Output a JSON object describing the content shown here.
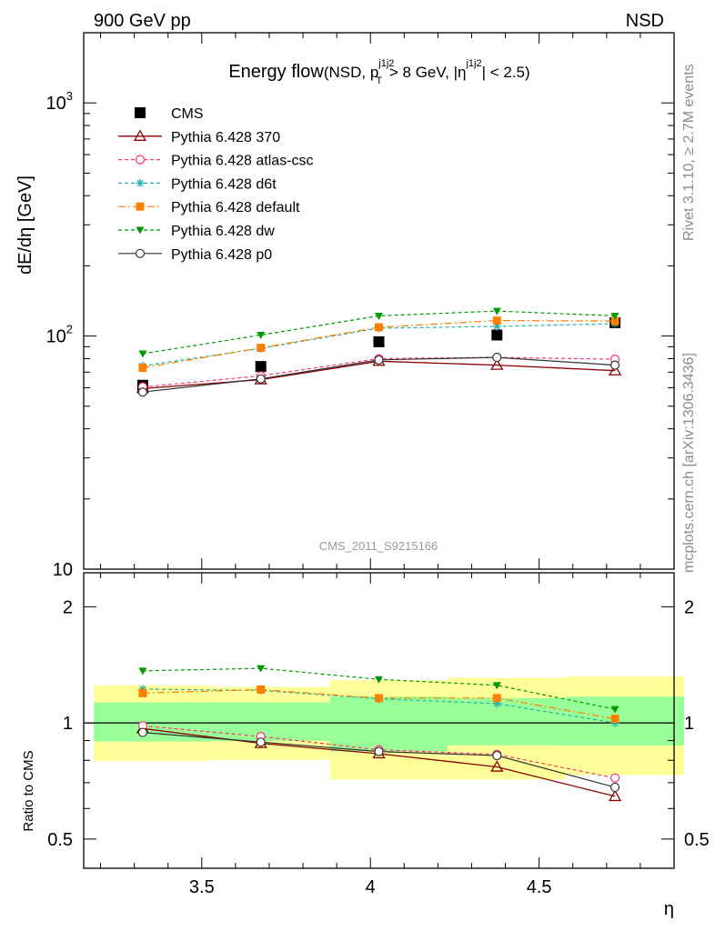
{
  "header": {
    "left": "900 GeV pp",
    "right": "NSD"
  },
  "side_text": {
    "rivet": "Rivet 3.1.10, ≥ 2.7M events",
    "mcplots": "mcplots.cern.ch [arXiv:1306.3436]"
  },
  "watermark": "CMS_2011_S9215166",
  "colors": {
    "cms": "#000000",
    "p370": "#8b0000",
    "atlas": "#ff3366",
    "d6t": "#20b2aa",
    "default": "#ff8000",
    "dw": "#009900",
    "p0": "#333333",
    "band_outer": "#ffff99",
    "band_inner": "#99ff99"
  },
  "chart_data": [
    {
      "type": "line",
      "title_main": "Energy flow",
      "title_detail": {
        "open": "(NSD, p",
        "sup1": "j1j2",
        "sub1": "T",
        "mid": " > 8 GeV, |η",
        "sup2": "j1j2",
        "close": "| < 2.5)"
      },
      "ylabel": "dE/dη [GeV]",
      "yscale": "log",
      "ylim": [
        10,
        2000
      ],
      "xlim": [
        3.15,
        4.9
      ],
      "y_tick_labels": [
        {
          "value": 10,
          "label": "10"
        },
        {
          "value": 100,
          "label": "10",
          "exp": "2"
        },
        {
          "value": 1000,
          "label": "10",
          "exp": "3"
        }
      ],
      "x": [
        3.325,
        3.675,
        4.025,
        4.375,
        4.725
      ],
      "series": [
        {
          "name": "CMS",
          "key": "cms",
          "values": [
            61.5,
            74.0,
            94.5,
            101.0,
            114.0
          ]
        },
        {
          "name": "Pythia 6.428 370",
          "key": "p370",
          "values": [
            59.5,
            65.0,
            78.0,
            75.0,
            71.0
          ]
        },
        {
          "name": "Pythia 6.428 atlas-csc",
          "key": "atlas",
          "values": [
            60.5,
            67.5,
            80.0,
            81.0,
            79.5
          ]
        },
        {
          "name": "Pythia 6.428 d6t",
          "key": "d6t",
          "values": [
            74.5,
            88.5,
            108.0,
            110.0,
            113.0
          ]
        },
        {
          "name": "Pythia 6.428 default",
          "key": "default",
          "values": [
            73.0,
            89.0,
            109.0,
            116.5,
            116.0
          ]
        },
        {
          "name": "Pythia 6.428 dw",
          "key": "dw",
          "values": [
            84.0,
            101.0,
            122.0,
            128.0,
            122.0
          ]
        },
        {
          "name": "Pythia 6.428 p0",
          "key": "p0",
          "values": [
            57.5,
            65.5,
            79.0,
            81.0,
            75.0
          ]
        }
      ]
    },
    {
      "type": "line",
      "xlabel": "η",
      "ylabel": "Ratio to CMS",
      "yscale": "log",
      "ylim": [
        0.42,
        2.45
      ],
      "xlim": [
        3.15,
        4.9
      ],
      "x_tick_labels": [
        {
          "value": 3.5,
          "label": "3.5"
        },
        {
          "value": 4.0,
          "label": "4"
        },
        {
          "value": 4.5,
          "label": "4.5"
        }
      ],
      "y_tick_labels": [
        {
          "value": 0.5,
          "label": "0.5"
        },
        {
          "value": 1,
          "label": "1"
        },
        {
          "value": 2,
          "label": "2"
        }
      ],
      "bands": [
        {
          "x": [
            3.15,
            3.5
          ],
          "outer": [
            0.797,
            1.25
          ],
          "inner": [
            0.895,
            1.13
          ]
        },
        {
          "x": [
            3.5,
            3.85
          ],
          "outer": [
            0.803,
            1.24
          ],
          "inner": [
            0.898,
            1.13
          ]
        },
        {
          "x": [
            3.85,
            4.2
          ],
          "outer": [
            0.714,
            1.29
          ],
          "inner": [
            0.844,
            1.17
          ]
        },
        {
          "x": [
            4.2,
            4.55
          ],
          "outer": [
            0.714,
            1.31
          ],
          "inner": [
            0.875,
            1.16
          ]
        },
        {
          "x": [
            4.55,
            4.9
          ],
          "outer": [
            0.733,
            1.32
          ],
          "inner": [
            0.873,
            1.17
          ]
        }
      ],
      "series": [
        {
          "name": "Pythia 6.428 370",
          "key": "p370",
          "values": [
            0.967,
            0.885,
            0.832,
            0.769,
            0.645
          ]
        },
        {
          "name": "Pythia 6.428 atlas-csc",
          "key": "atlas",
          "values": [
            0.983,
            0.922,
            0.852,
            0.829,
            0.72
          ]
        },
        {
          "name": "Pythia 6.428 d6t",
          "key": "d6t",
          "values": [
            1.223,
            1.214,
            1.155,
            1.122,
            1.0
          ]
        },
        {
          "name": "Pythia 6.428 default",
          "key": "default",
          "values": [
            1.195,
            1.22,
            1.159,
            1.16,
            1.025
          ]
        },
        {
          "name": "Pythia 6.428 dw",
          "key": "dw",
          "values": [
            1.364,
            1.385,
            1.297,
            1.252,
            1.085
          ]
        },
        {
          "name": "Pythia 6.428 p0",
          "key": "p0",
          "values": [
            0.945,
            0.892,
            0.843,
            0.823,
            0.681
          ]
        }
      ]
    }
  ]
}
